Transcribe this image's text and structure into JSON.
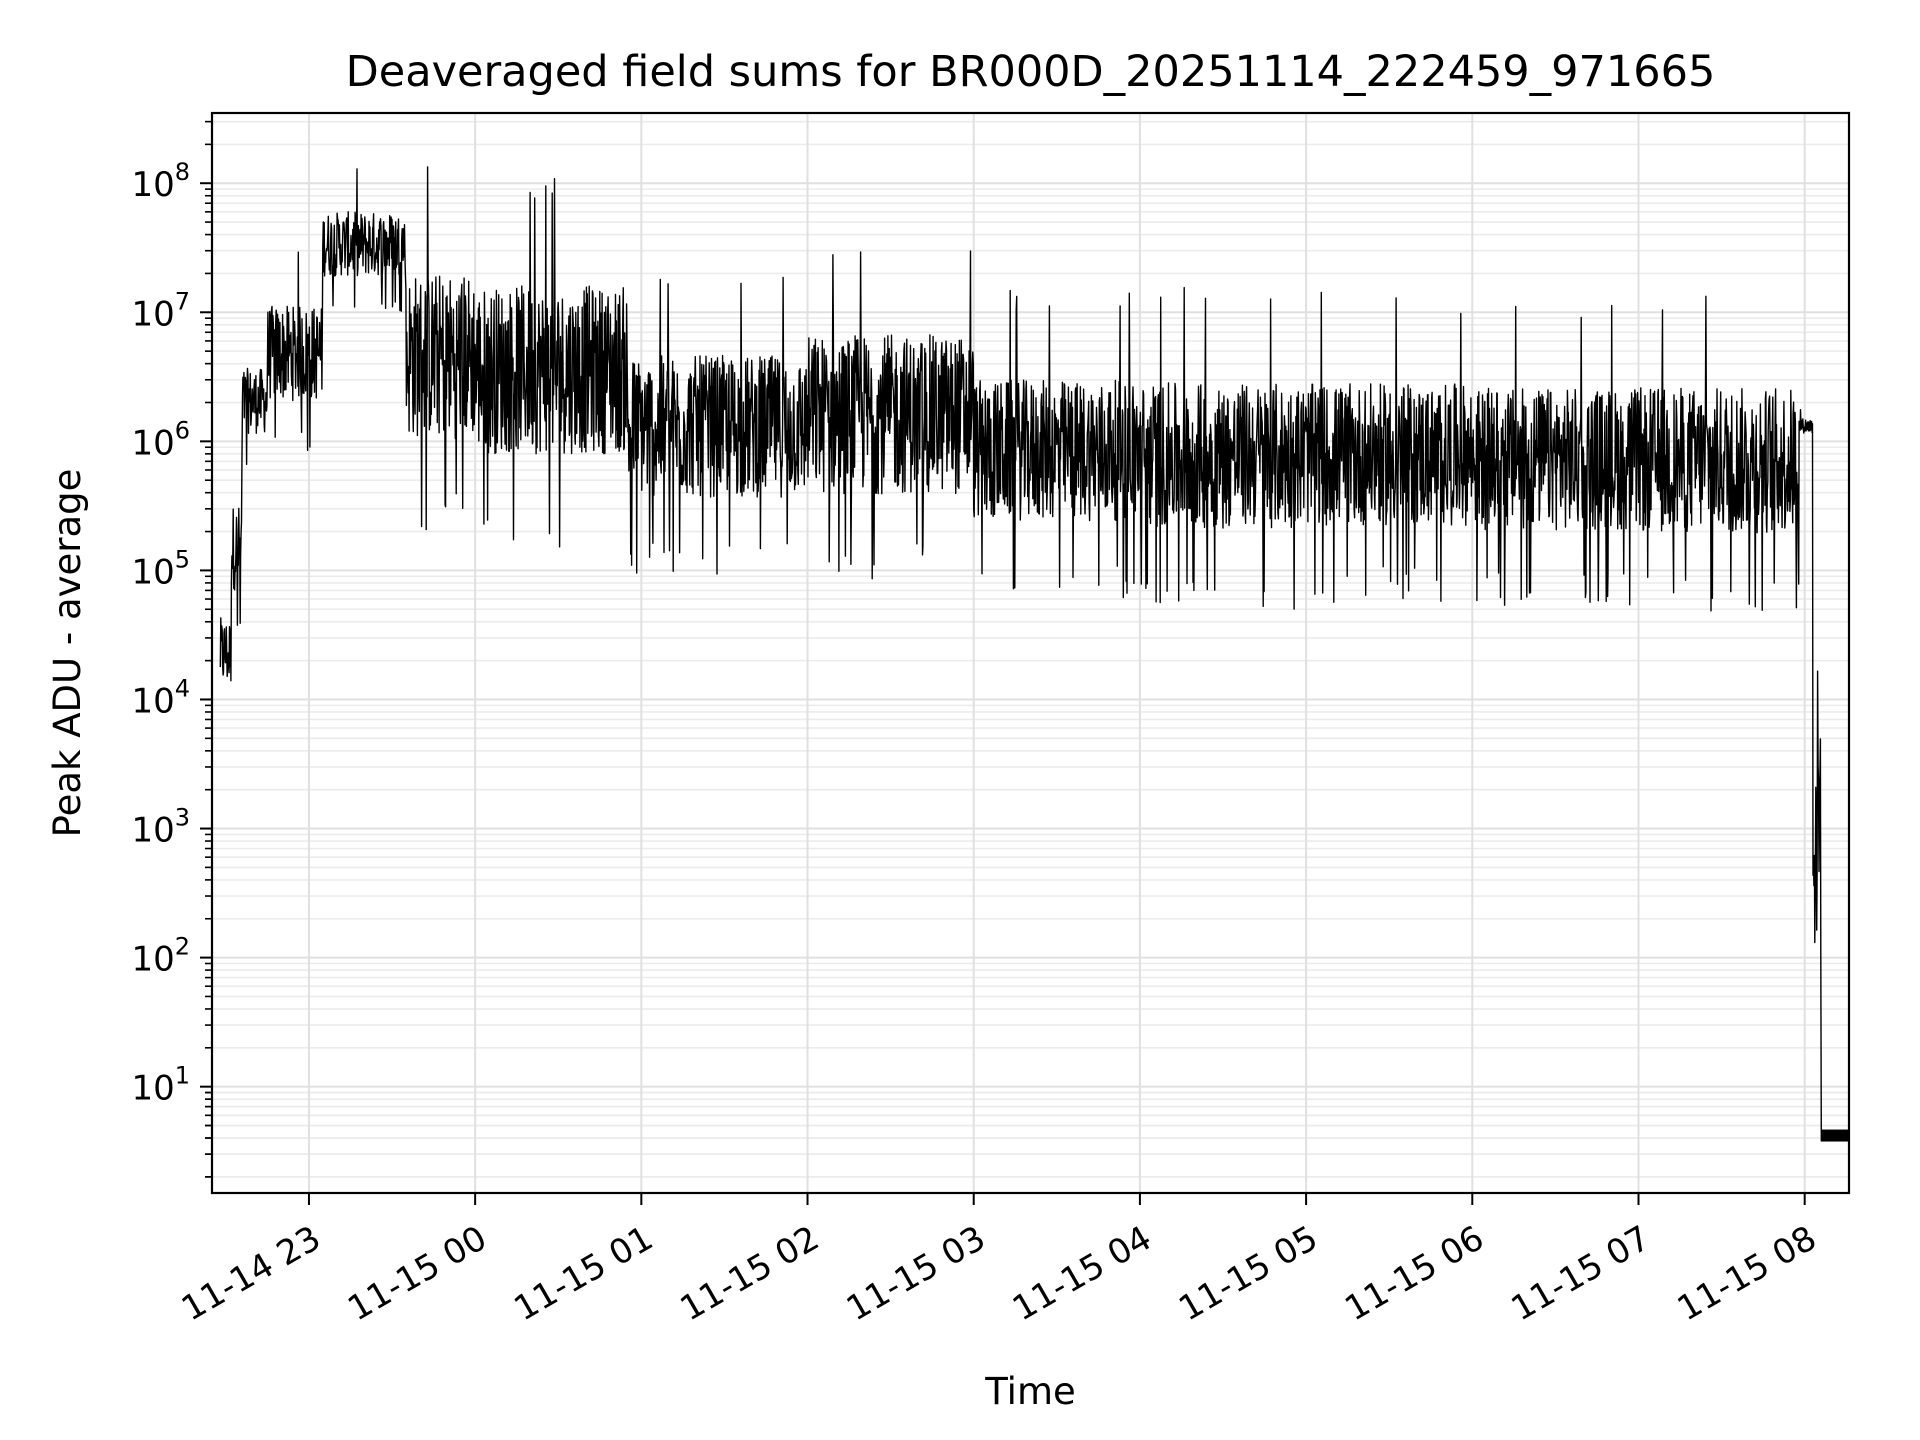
{
  "chart_data": {
    "type": "line",
    "title": "Deaveraged field sums for BR000D_20251114_222459_971665",
    "xlabel": "Time",
    "ylabel": "Peak ADU - average",
    "yscale": "log",
    "ylim": [
      1.5,
      350000000
    ],
    "xlim": [
      "2025-11-14 22:25",
      "2025-11-15 08:16"
    ],
    "x_ticks": [
      {
        "label": "11-14 23",
        "value": "2025-11-14 23:00"
      },
      {
        "label": "11-15 00",
        "value": "2025-11-15 00:00"
      },
      {
        "label": "11-15 01",
        "value": "2025-11-15 01:00"
      },
      {
        "label": "11-15 02",
        "value": "2025-11-15 02:00"
      },
      {
        "label": "11-15 03",
        "value": "2025-11-15 03:00"
      },
      {
        "label": "11-15 04",
        "value": "2025-11-15 04:00"
      },
      {
        "label": "11-15 05",
        "value": "2025-11-15 05:00"
      },
      {
        "label": "11-15 06",
        "value": "2025-11-15 06:00"
      },
      {
        "label": "11-15 07",
        "value": "2025-11-15 07:00"
      },
      {
        "label": "11-15 08",
        "value": "2025-11-15 08:00"
      }
    ],
    "y_ticks": [
      {
        "base": "10",
        "exp": "1",
        "value": 10
      },
      {
        "base": "10",
        "exp": "2",
        "value": 100
      },
      {
        "base": "10",
        "exp": "3",
        "value": 1000
      },
      {
        "base": "10",
        "exp": "4",
        "value": 10000
      },
      {
        "base": "10",
        "exp": "5",
        "value": 100000
      },
      {
        "base": "10",
        "exp": "6",
        "value": 1000000
      },
      {
        "base": "10",
        "exp": "7",
        "value": 10000000
      },
      {
        "base": "10",
        "exp": "8",
        "value": 100000000
      }
    ],
    "grid": "major and minor",
    "line_color": "#000000",
    "series": [
      {
        "segments": [
          {
            "start": "2025-11-14 22:28",
            "end": "2025-11-14 22:32",
            "low": 6000,
            "high": 100000
          },
          {
            "start": "2025-11-14 22:32",
            "end": "2025-11-14 22:36",
            "low": 30000,
            "high": 900000
          },
          {
            "start": "2025-11-14 22:36",
            "end": "2025-11-14 22:45",
            "low": 600000,
            "high": 8000000
          },
          {
            "start": "2025-11-14 22:45",
            "end": "2025-11-14 23:05",
            "low": 800000,
            "high": 35000000
          },
          {
            "start": "2025-11-14 23:05",
            "end": "2025-11-14 23:35",
            "low": 10000000,
            "high": 130000000
          },
          {
            "start": "2025-11-14 23:35",
            "end": "2025-11-15 00:00",
            "low": 200000,
            "high": 150000000
          },
          {
            "start": "2025-11-15 00:00",
            "end": "2025-11-15 00:55",
            "low": 150000,
            "high": 120000000
          },
          {
            "start": "2025-11-15 00:55",
            "end": "2025-11-15 02:00",
            "low": 90000,
            "high": 25000000
          },
          {
            "start": "2025-11-15 02:00",
            "end": "2025-11-15 03:00",
            "low": 80000,
            "high": 45000000
          },
          {
            "start": "2025-11-15 03:00",
            "end": "2025-11-15 04:00",
            "low": 60000,
            "high": 16000000
          },
          {
            "start": "2025-11-15 04:00",
            "end": "2025-11-15 05:00",
            "low": 50000,
            "high": 16000000
          },
          {
            "start": "2025-11-15 05:00",
            "end": "2025-11-15 06:00",
            "low": 55000,
            "high": 15000000
          },
          {
            "start": "2025-11-15 06:00",
            "end": "2025-11-15 07:00",
            "low": 50000,
            "high": 14000000
          },
          {
            "start": "2025-11-15 07:00",
            "end": "2025-11-15 07:58",
            "low": 45000,
            "high": 15000000
          },
          {
            "start": "2025-11-15 07:58",
            "end": "2025-11-15 08:03",
            "low": 1000000,
            "high": 1800000
          },
          {
            "start": "2025-11-15 08:03",
            "end": "2025-11-15 08:06",
            "low": 3.8,
            "high": 800000
          },
          {
            "start": "2025-11-15 08:06",
            "end": "2025-11-15 08:16",
            "low": 3.8,
            "high": 4.6
          }
        ]
      }
    ]
  }
}
